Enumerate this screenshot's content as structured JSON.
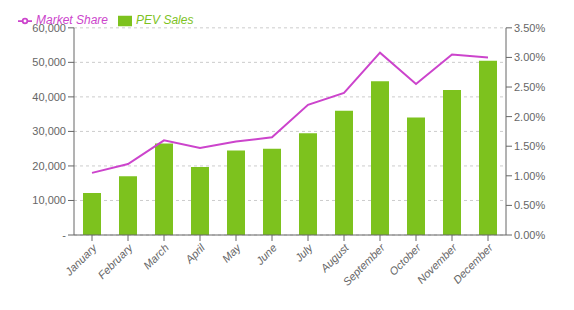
{
  "chart_data": {
    "type": "bar",
    "categories": [
      "January",
      "February",
      "March",
      "April",
      "May",
      "June",
      "July",
      "August",
      "September",
      "October",
      "November",
      "December"
    ],
    "series": [
      {
        "name": "PEV Sales",
        "type": "bar",
        "color": "#7DC21E",
        "axis": "y",
        "values": [
          12200,
          17000,
          26500,
          19700,
          24500,
          25000,
          29500,
          36000,
          44500,
          34000,
          42000,
          50500
        ]
      },
      {
        "name": "Market Share",
        "type": "line",
        "color": "#CC44CC",
        "axis": "y2",
        "values": [
          0.0105,
          0.012,
          0.016,
          0.0147,
          0.0158,
          0.0165,
          0.022,
          0.024,
          0.0308,
          0.0255,
          0.0305,
          0.03
        ]
      }
    ],
    "ylim": [
      0,
      60000
    ],
    "yticks": [
      {
        "value": 0,
        "label": "-"
      },
      {
        "value": 10000,
        "label": "10,000"
      },
      {
        "value": 20000,
        "label": "20,000"
      },
      {
        "value": 30000,
        "label": "30,000"
      },
      {
        "value": 40000,
        "label": "40,000"
      },
      {
        "value": 50000,
        "label": "50,000"
      },
      {
        "value": 60000,
        "label": "60,000"
      }
    ],
    "y2lim": [
      0,
      0.035
    ],
    "y2ticks": [
      {
        "value": 0.0,
        "label": "0.00%"
      },
      {
        "value": 0.005,
        "label": "0.50%"
      },
      {
        "value": 0.01,
        "label": "1.00%"
      },
      {
        "value": 0.015,
        "label": "1.50%"
      },
      {
        "value": 0.02,
        "label": "2.00%"
      },
      {
        "value": 0.025,
        "label": "2.50%"
      },
      {
        "value": 0.03,
        "label": "3.00%"
      },
      {
        "value": 0.035,
        "label": "3.50%"
      }
    ],
    "grid": true,
    "legend": "upper left"
  }
}
